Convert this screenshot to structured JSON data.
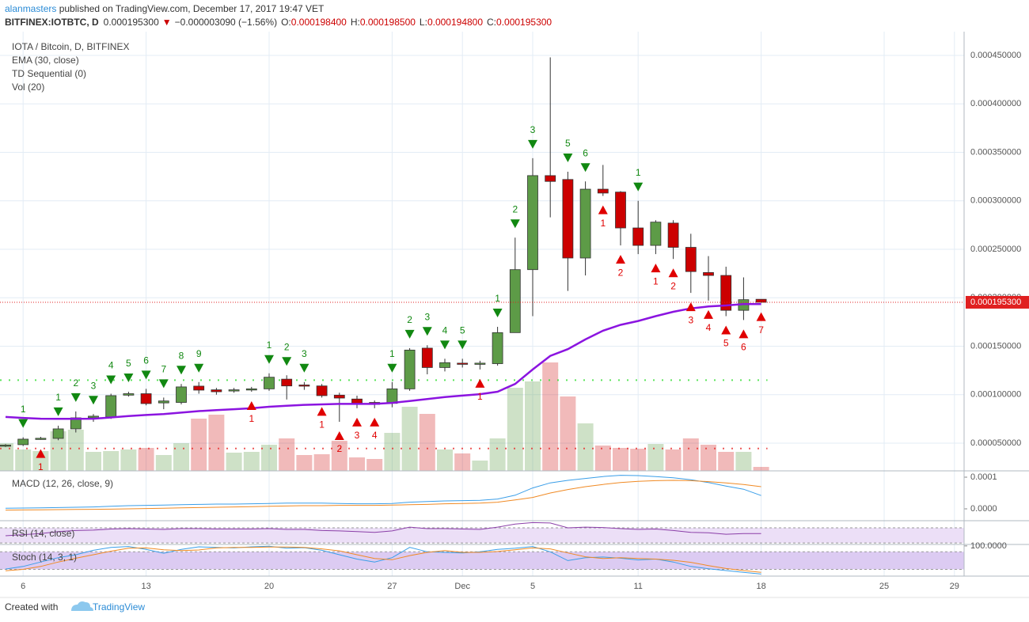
{
  "header": {
    "author": "alanmasters",
    "published": " published on TradingView.com, December 17, 2017 19:47 VET",
    "symbol": "BITFINEX:IOTBTC, D",
    "price": "0.000195300",
    "arrow": "▼",
    "change": "−0.000003090 (−1.56%)",
    "ohlc": [
      {
        "label": "O:",
        "value": "0.000198400"
      },
      {
        "label": "H:",
        "value": "0.000198500"
      },
      {
        "label": "L:",
        "value": "0.000194800"
      },
      {
        "label": "C:",
        "value": "0.000195300"
      }
    ]
  },
  "footer": {
    "text": "Created with",
    "brand": "TradingView"
  },
  "chart_data": {
    "type": "candlestick",
    "title": "IOTA / Bitcoin, D, BITFINEX",
    "grid": true,
    "up_color": "#5d9b47",
    "down_color": "#cc0000",
    "ylim": [
      2.14e-05,
      0.0004745
    ],
    "yticks": [
      {
        "value": 5e-05,
        "label": "0.000050000"
      },
      {
        "value": 0.0001,
        "label": "0.000100000"
      },
      {
        "value": 0.00015,
        "label": "0.000150000"
      },
      {
        "value": 0.0002,
        "label": "0.000200000"
      },
      {
        "value": 0.00025,
        "label": "0.000250000"
      },
      {
        "value": 0.0003,
        "label": "0.000300000"
      },
      {
        "value": 0.00035,
        "label": "0.000350000"
      },
      {
        "value": 0.0004,
        "label": "0.000400000"
      },
      {
        "value": 0.00045,
        "label": "0.000450000"
      }
    ],
    "categories": [
      null,
      "6",
      null,
      null,
      null,
      null,
      null,
      null,
      "13",
      null,
      null,
      null,
      null,
      null,
      null,
      "20",
      null,
      null,
      null,
      null,
      null,
      null,
      "27",
      null,
      null,
      null,
      "Dec",
      null,
      null,
      null,
      "5",
      null,
      null,
      null,
      null,
      null,
      "11",
      null,
      null,
      null,
      null,
      null,
      null,
      "18",
      null,
      null,
      null,
      null,
      null,
      null,
      "25",
      null,
      null,
      null,
      "29"
    ],
    "open": [
      4.7e-05,
      4.84e-05,
      5.4e-05,
      5.49e-05,
      6.47e-05,
      7.61e-05,
      7.7e-05,
      9.95e-05,
      0.000101,
      9.15e-05,
      9.2e-05,
      0.0001088,
      0.000105,
      0.000104,
      0.000105,
      0.000106,
      0.000116,
      0.00011,
      0.000109,
      9.95e-05,
      9.55e-05,
      9.2e-05,
      9.1e-05,
      0.000106,
      0.000148,
      0.000128,
      0.0001325,
      0.000132,
      0.000132,
      0.000164,
      0.000229,
      0.000326,
      0.000322,
      0.000241,
      0.000312,
      0.000309,
      0.000272,
      0.000254,
      0.000277,
      0.000252,
      0.000226,
      0.000223,
      0.000187,
      0.0001984,
      null,
      null,
      null,
      null,
      null,
      null,
      null,
      null,
      null,
      null,
      null
    ],
    "high": [
      4.9e-05,
      5.6e-05,
      5.65e-05,
      6.8e-05,
      8.27e-05,
      8e-05,
      0.000101,
      0.000103,
      0.000106,
      9.7e-05,
      0.000111,
      0.000113,
      0.000107,
      0.000107,
      0.000108,
      0.000122,
      0.00012,
      0.000113,
      0.000111,
      0.000102,
      9.9e-05,
      9.4e-05,
      0.000113,
      0.000148,
      0.000151,
      0.000137,
      0.000137,
      0.000135,
      0.00017,
      0.000262,
      0.000344,
      0.000448,
      0.00033,
      0.00032,
      0.000337,
      0.00031,
      0.0003,
      0.00028,
      0.00028,
      0.000266,
      0.000243,
      0.000232,
      0.000221,
      0.0001985,
      null,
      null,
      null,
      null,
      null,
      null,
      null,
      null,
      null,
      null,
      null
    ],
    "low": [
      4.6e-05,
      4.7e-05,
      5.35e-05,
      5.3e-05,
      6.1e-05,
      7.2e-05,
      7.5e-05,
      9.8e-05,
      8.9e-05,
      8.5e-05,
      9e-05,
      0.000101,
      0.0001,
      0.000102,
      0.000103,
      0.000104,
      9.5e-05,
      0.000105,
      9.7e-05,
      7.2e-05,
      8.6e-05,
      8.6e-05,
      8.7e-05,
      0.000104,
      0.000121,
      0.000124,
      0.000128,
      0.000126,
      0.00013,
      0.000164,
      0.000181,
      0.000283,
      0.000207,
      0.000223,
      0.000305,
      0.000254,
      0.000245,
      0.000245,
      0.00024,
      0.000205,
      0.000197,
      0.000181,
      0.000177,
      0.0001948,
      null,
      null,
      null,
      null,
      null,
      null,
      null,
      null,
      null,
      null,
      null
    ],
    "close": [
      4.8e-05,
      5.41e-05,
      5.5e-05,
      6.47e-05,
      7.61e-05,
      7.78e-05,
      9.9e-05,
      0.000101,
      9.08e-05,
      9.35e-05,
      0.000108,
      0.0001047,
      0.000103,
      0.000105,
      0.000106,
      0.000118,
      0.000109,
      0.000109,
      9.9e-05,
      9.65e-05,
      9.05e-05,
      9e-05,
      0.000106,
      0.000146,
      0.000128,
      0.000133,
      0.000132,
      0.0001325,
      0.000164,
      0.000229,
      0.000326,
      0.00032,
      0.000241,
      0.000312,
      0.000308,
      0.000272,
      0.000254,
      0.000278,
      0.000252,
      0.000227,
      0.000223,
      0.000187,
      0.000198,
      0.0001953,
      null,
      null,
      null,
      null,
      null,
      null,
      null,
      null,
      null,
      null,
      null
    ],
    "last_price": {
      "value": 0.0001953,
      "label": "0.000195300",
      "color": "#e02020"
    },
    "series": [
      {
        "name": "EMA (30, close)",
        "color": "#8b14e0",
        "values": [
          7.7e-05,
          7.6e-05,
          7.52e-05,
          7.5e-05,
          7.5e-05,
          7.52e-05,
          7.65e-05,
          7.8e-05,
          7.9e-05,
          8e-05,
          8.15e-05,
          8.3e-05,
          8.4e-05,
          8.5e-05,
          8.6e-05,
          8.75e-05,
          8.85e-05,
          8.95e-05,
          9e-05,
          9.05e-05,
          9.05e-05,
          9.05e-05,
          9.15e-05,
          9.35e-05,
          9.55e-05,
          9.75e-05,
          9.9e-05,
          0.0001005,
          0.000103,
          0.000111,
          0.000126,
          0.00014,
          0.000147,
          0.000157,
          0.000166,
          0.000172,
          0.000176,
          0.000181,
          0.0001855,
          0.000189,
          0.000191,
          0.000192,
          0.0001935,
          0.0001935,
          null,
          null,
          null,
          null,
          null,
          null,
          null,
          null,
          null,
          null,
          null
        ]
      }
    ],
    "td_sequential": {
      "name": "TD Sequential (0)",
      "up_color": "#118811",
      "down_color": "#e00000",
      "up": [
        null,
        "1",
        null,
        "1",
        "2",
        "3",
        "4",
        "5",
        "6",
        "7",
        "8",
        "9",
        null,
        null,
        null,
        "1",
        "2",
        "3",
        null,
        null,
        null,
        null,
        "1",
        "2",
        "3",
        "4",
        "5",
        null,
        "1",
        "2",
        "3",
        null,
        "5",
        "6",
        null,
        null,
        "1",
        null,
        null,
        null,
        null,
        null,
        null,
        null,
        null,
        null,
        null,
        null,
        null,
        null,
        null,
        null,
        null,
        null,
        null
      ],
      "down": [
        null,
        null,
        "1",
        null,
        null,
        null,
        null,
        null,
        null,
        null,
        null,
        null,
        null,
        null,
        "1",
        null,
        null,
        null,
        "1",
        "2",
        "3",
        "4",
        null,
        null,
        null,
        null,
        null,
        "1",
        null,
        null,
        null,
        null,
        null,
        null,
        "1",
        "2",
        null,
        "1",
        "2",
        "3",
        "4",
        "5",
        "6",
        "7",
        null,
        null,
        null,
        null,
        null,
        null,
        null,
        null,
        null,
        null,
        null
      ]
    },
    "volume": {
      "name": "Vol (20)",
      "values": [
        35,
        27,
        25,
        50,
        52,
        24,
        25,
        27,
        29,
        20,
        35,
        66,
        71,
        23,
        24,
        33,
        41,
        20,
        21,
        38,
        17,
        15,
        48,
        81,
        72,
        27,
        22,
        13,
        41,
        105,
        113,
        137,
        94,
        60,
        32,
        29,
        28,
        34,
        27,
        41,
        33,
        24,
        24,
        5,
        null,
        null,
        null,
        null,
        null,
        null,
        null,
        null,
        null,
        null,
        null
      ]
    },
    "levels": [
      {
        "value": 4.45e-05,
        "color": "#e83030"
      },
      {
        "value": 0.000115,
        "color": "#33dd33"
      }
    ],
    "panes": [
      {
        "type": "line",
        "title": "MACD (12, 26, close, 9)",
        "ylim": [
          -3.75e-05,
          0.00012
        ],
        "yticks": [
          0.0001,
          {
            "value": 0,
            "label": "0.0000"
          }
        ],
        "series": [
          {
            "color": "#3a9ee8",
            "values": [
              2e-06,
              2.5e-06,
              3e-06,
              4e-06,
              5e-06,
              6e-06,
              8e-06,
              1e-05,
              1.1e-05,
              1.2e-05,
              1.3e-05,
              1.4e-05,
              1.5e-05,
              1.5e-05,
              1.6e-05,
              1.7e-05,
              1.8e-05,
              1.8e-05,
              1.8e-05,
              1.7e-05,
              1.6e-05,
              1.6e-05,
              1.7e-05,
              2.1e-05,
              2.3e-05,
              2.5e-05,
              2.6e-05,
              2.7e-05,
              3.1e-05,
              4.3e-05,
              6.6e-05,
              8.2e-05,
              9e-05,
              9.6e-05,
              0.000102,
              0.000106,
              0.000105,
              0.000102,
              9.8e-05,
              9.2e-05,
              8.3e-05,
              7.2e-05,
              6.2e-05,
              4.2e-05,
              null,
              null,
              null,
              null,
              null,
              null,
              null,
              null,
              null,
              null,
              null
            ]
          },
          {
            "color": "#f08a24",
            "values": [
              -4e-06,
              -3.5e-06,
              -3e-06,
              -2.5e-06,
              -2e-06,
              -1.5e-06,
              -1e-06,
              0,
              1e-06,
              2e-06,
              3e-06,
              4e-06,
              5e-06,
              6e-06,
              7e-06,
              8e-06,
              9e-06,
              1e-05,
              1e-05,
              1.1e-05,
              1.1e-05,
              1.1e-05,
              1.2e-05,
              1.3e-05,
              1.4e-05,
              1.6e-05,
              1.7e-05,
              1.8e-05,
              2.1e-05,
              2.8e-05,
              3.6e-05,
              5e-05,
              6.1e-05,
              7e-05,
              7.7e-05,
              8.3e-05,
              8.7e-05,
              8.9e-05,
              9e-05,
              8.9e-05,
              8.6e-05,
              8.2e-05,
              7.7e-05,
              7e-05,
              null,
              null,
              null,
              null,
              null,
              null,
              null,
              null,
              null,
              null,
              null
            ]
          }
        ]
      },
      {
        "type": "line",
        "title": "RSI (14, close)",
        "ylim": [
          26,
          89
        ],
        "band": [
          30,
          70
        ],
        "band_color": "#ecdff7",
        "series": [
          {
            "color": "#8b3fa8",
            "values": [
              49,
              52,
              55,
              60,
              63,
              64,
              67,
              68,
              67,
              66,
              68,
              68,
              67,
              67,
              67,
              68,
              66,
              66,
              63,
              62,
              60,
              58,
              62,
              72,
              68,
              68,
              67,
              66,
              72,
              80,
              84,
              83,
              70,
              72,
              71,
              68,
              66,
              67,
              63,
              58,
              57,
              53,
              55,
              55,
              null,
              null,
              null,
              null,
              null,
              null,
              null,
              null,
              null,
              null,
              null
            ]
          }
        ]
      },
      {
        "type": "line",
        "title": "Stoch (14, 3, 1)",
        "ylim": [
          -3,
          105
        ],
        "band": [
          20,
          80
        ],
        "band_color": "#dccbf2",
        "yticks": [
          {
            "value": 100,
            "label": "100.0000"
          }
        ],
        "series": [
          {
            "color": "#3a9ee8",
            "values": [
              21,
              30,
              45,
              60,
              70,
              85,
              95,
              98,
              88,
              75,
              88,
              97,
              95,
              93,
              97,
              99,
              92,
              94,
              85,
              70,
              55,
              45,
              60,
              95,
              80,
              78,
              76,
              80,
              88,
              92,
              98,
              80,
              50,
              60,
              62,
              58,
              52,
              55,
              45,
              30,
              22,
              16,
              10,
              4,
              null,
              null,
              null,
              null,
              null,
              null,
              null,
              null,
              null,
              null,
              null
            ]
          },
          {
            "color": "#f08a24",
            "values": [
              15,
              20,
              30,
              45,
              58,
              70,
              82,
              92,
              93,
              87,
              84,
              86,
              93,
              95,
              95,
              96,
              96,
              95,
              90,
              83,
              70,
              57,
              53,
              67,
              78,
              84,
              78,
              78,
              81,
              87,
              93,
              90,
              76,
              63,
              57,
              60,
              57,
              55,
              51,
              44,
              33,
              23,
              16,
              10,
              null,
              null,
              null,
              null,
              null,
              null,
              null,
              null,
              null,
              null,
              null
            ]
          }
        ]
      }
    ]
  }
}
